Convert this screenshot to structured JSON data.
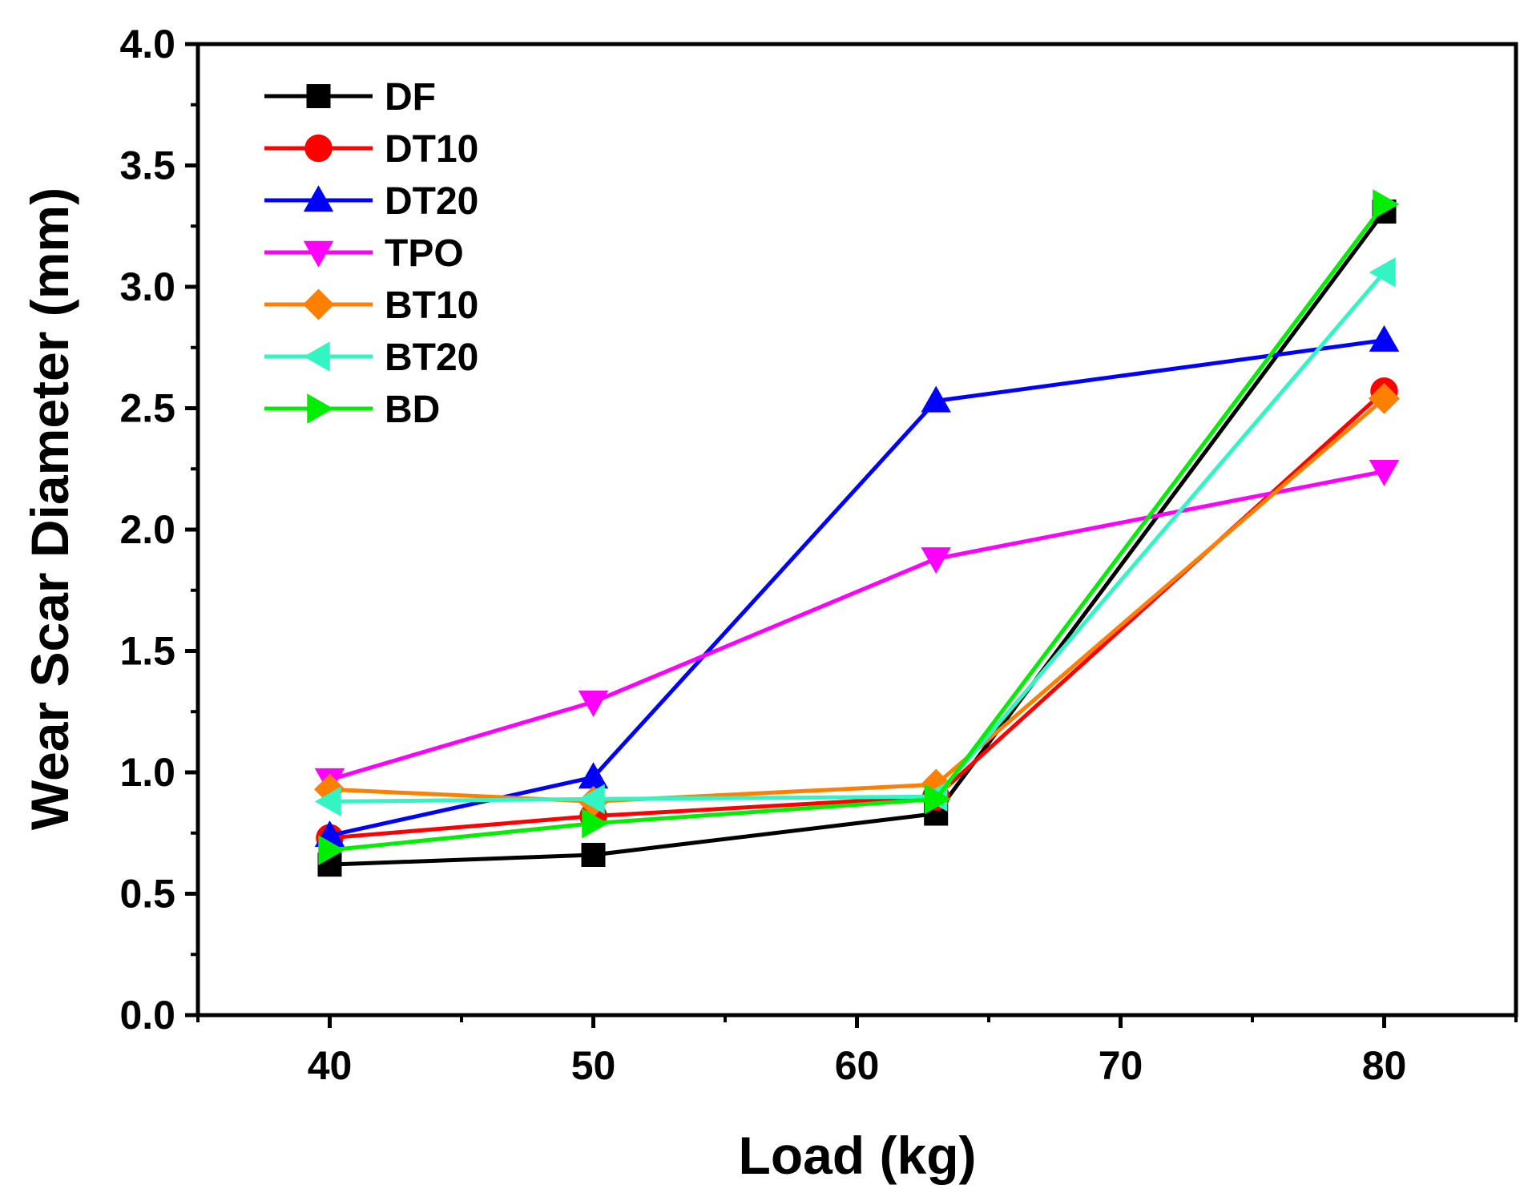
{
  "chart_data": {
    "type": "line",
    "title": "",
    "xlabel": "Load (kg)",
    "ylabel": "Wear Scar Diameter (mm)",
    "xlim": [
      35,
      85
    ],
    "ylim": [
      0.0,
      4.0
    ],
    "xticks": [
      40,
      50,
      60,
      70,
      80
    ],
    "xtick_labels": [
      "40",
      "50",
      "60",
      "70",
      "80"
    ],
    "yticks": [
      0.0,
      0.5,
      1.0,
      1.5,
      2.0,
      2.5,
      3.0,
      3.5,
      4.0
    ],
    "ytick_labels": [
      "0.0",
      "0.5",
      "1.0",
      "1.5",
      "2.0",
      "2.5",
      "3.0",
      "3.5",
      "4.0"
    ],
    "legend_position": "top-left",
    "x": [
      40,
      50,
      63,
      80
    ],
    "series": [
      {
        "name": "DF",
        "color": "#000000",
        "marker": "square",
        "values": [
          0.62,
          0.66,
          0.83,
          3.31
        ]
      },
      {
        "name": "DT10",
        "color": "#ff0000",
        "marker": "circle",
        "values": [
          0.73,
          0.82,
          0.9,
          2.57
        ]
      },
      {
        "name": "DT20",
        "color": "#0000ff",
        "marker": "triangle-up",
        "values": [
          0.74,
          0.98,
          2.53,
          2.78
        ]
      },
      {
        "name": "TPO",
        "color": "#ff00ff",
        "marker": "triangle-down",
        "values": [
          0.97,
          1.29,
          1.88,
          2.24
        ]
      },
      {
        "name": "BT10",
        "color": "#ff8000",
        "marker": "diamond",
        "values": [
          0.93,
          0.88,
          0.95,
          2.54
        ]
      },
      {
        "name": "BT20",
        "color": "#33f5c4",
        "marker": "triangle-left",
        "values": [
          0.88,
          0.89,
          0.9,
          3.06
        ]
      },
      {
        "name": "BD",
        "color": "#00ee00",
        "marker": "triangle-right",
        "values": [
          0.68,
          0.79,
          0.89,
          3.34
        ]
      }
    ]
  }
}
